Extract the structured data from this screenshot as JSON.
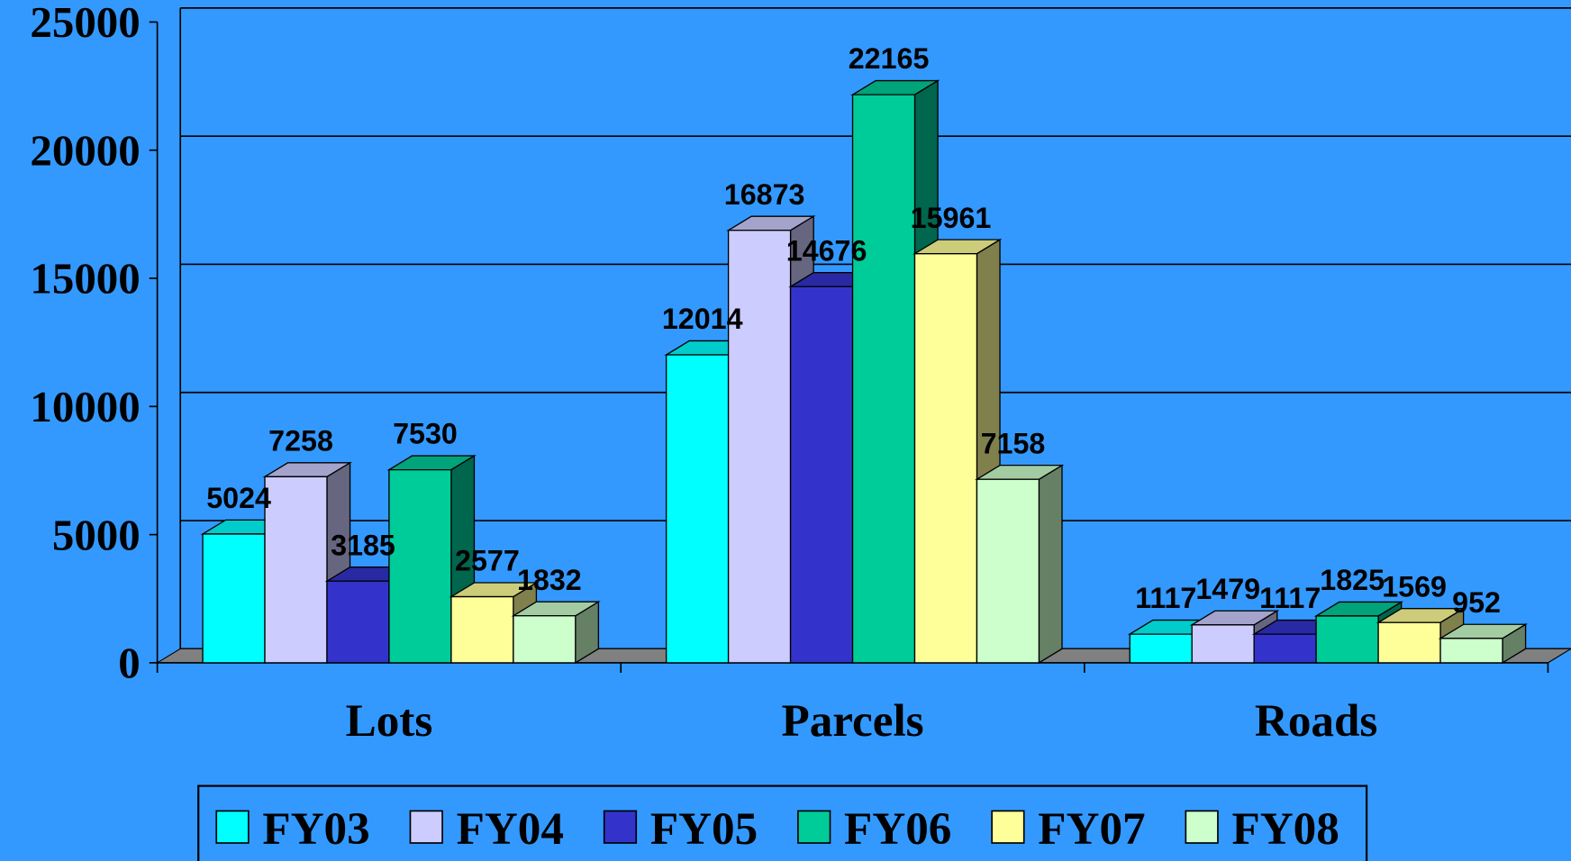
{
  "chart_data": {
    "type": "bar3d",
    "categories": [
      "Lots",
      "Parcels",
      "Roads"
    ],
    "series": [
      {
        "name": "FY03",
        "color": "#00ffff",
        "values": [
          5024,
          12014,
          1117
        ]
      },
      {
        "name": "FY04",
        "color": "#ccccff",
        "values": [
          7258,
          16873,
          1479
        ]
      },
      {
        "name": "FY05",
        "color": "#3333cc",
        "values": [
          3185,
          14676,
          1117
        ]
      },
      {
        "name": "FY06",
        "color": "#00cc99",
        "values": [
          7530,
          22165,
          1825
        ]
      },
      {
        "name": "FY07",
        "color": "#ffff99",
        "values": [
          2577,
          15961,
          1569
        ]
      },
      {
        "name": "FY08",
        "color": "#ccffcc",
        "values": [
          1832,
          7158,
          952
        ]
      }
    ],
    "ylim": [
      0,
      25000
    ],
    "yticks": [
      0,
      5000,
      10000,
      15000,
      20000,
      25000
    ],
    "grid": true,
    "legend": "bottom"
  }
}
